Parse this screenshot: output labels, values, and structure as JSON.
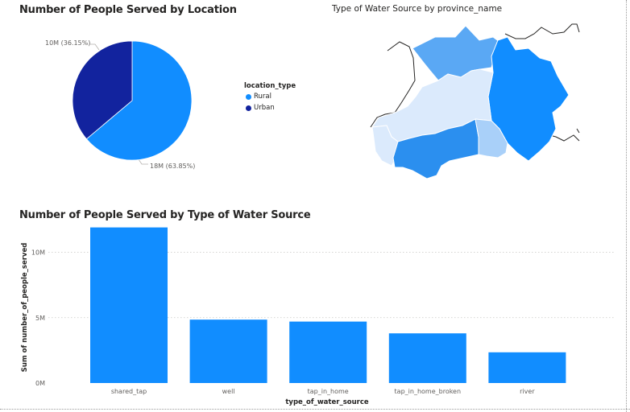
{
  "pie_title": "Number of People Served by Location",
  "map_title": "Type of Water Source by province_name",
  "bar_title": "Number of People Served by Type of Water Source",
  "legend": {
    "title": "location_type",
    "items": [
      {
        "label": "Rural",
        "color": "#118dff"
      },
      {
        "label": "Urban",
        "color": "#12239e"
      }
    ]
  },
  "map_region_colors": [
    "#5aa8f4",
    "#118dff",
    "#dbeafc",
    "#2b8fef",
    "#a9d0f9"
  ],
  "chart_data": [
    {
      "type": "pie",
      "title": "Number of People Served by Location",
      "legend_title": "location_type",
      "slices": [
        {
          "name": "Rural",
          "value": 18,
          "label": "18M (63.85%)",
          "percent": 63.85,
          "color": "#118dff"
        },
        {
          "name": "Urban",
          "value": 10,
          "label": "10M (36.15%)",
          "percent": 36.15,
          "color": "#12239e"
        }
      ]
    },
    {
      "type": "bar",
      "title": "Number of People Served by Type of Water Source",
      "categories": [
        "shared_tap",
        "well",
        "tap_in_home",
        "tap_in_home_broken",
        "river"
      ],
      "values": [
        11.9,
        4.85,
        4.7,
        3.8,
        2.35
      ],
      "xlabel": "type_of_water_source",
      "ylabel": "Sum of number_of_people_served",
      "yticks": [
        {
          "v": 0,
          "label": "0M"
        },
        {
          "v": 5,
          "label": "5M"
        },
        {
          "v": 10,
          "label": "10M"
        }
      ],
      "ylim": [
        0,
        12
      ],
      "grid": true,
      "color": "#118dff"
    }
  ]
}
